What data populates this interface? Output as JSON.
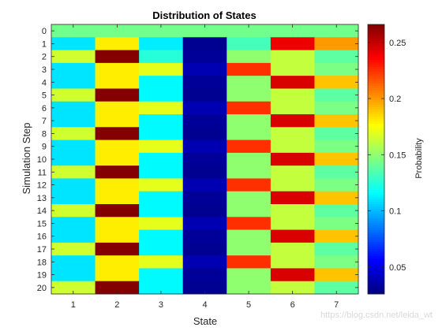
{
  "chart_data": {
    "type": "heatmap",
    "title": "Distribution of States",
    "xlabel": "State",
    "ylabel": "Simulation Step",
    "x": [
      1,
      2,
      3,
      4,
      5,
      6,
      7
    ],
    "y": [
      0,
      1,
      2,
      3,
      4,
      5,
      6,
      7,
      8,
      9,
      10,
      11,
      12,
      13,
      14,
      15,
      16,
      17,
      18,
      19,
      20
    ],
    "values": [
      [
        0.143,
        0.143,
        0.143,
        0.143,
        0.143,
        0.143,
        0.143
      ],
      [
        0.11,
        0.18,
        0.112,
        0.03,
        0.132,
        0.24,
        0.2
      ],
      [
        0.165,
        0.265,
        0.125,
        0.032,
        0.15,
        0.162,
        0.138
      ],
      [
        0.11,
        0.18,
        0.17,
        0.038,
        0.225,
        0.162,
        0.145
      ],
      [
        0.11,
        0.18,
        0.115,
        0.032,
        0.15,
        0.245,
        0.19
      ],
      [
        0.165,
        0.265,
        0.115,
        0.03,
        0.15,
        0.162,
        0.138
      ],
      [
        0.11,
        0.18,
        0.17,
        0.038,
        0.225,
        0.162,
        0.145
      ],
      [
        0.11,
        0.18,
        0.115,
        0.032,
        0.15,
        0.245,
        0.19
      ],
      [
        0.165,
        0.265,
        0.115,
        0.03,
        0.15,
        0.162,
        0.138
      ],
      [
        0.11,
        0.18,
        0.17,
        0.038,
        0.225,
        0.162,
        0.145
      ],
      [
        0.11,
        0.18,
        0.115,
        0.032,
        0.15,
        0.245,
        0.19
      ],
      [
        0.165,
        0.265,
        0.115,
        0.03,
        0.15,
        0.162,
        0.138
      ],
      [
        0.11,
        0.18,
        0.17,
        0.038,
        0.225,
        0.162,
        0.145
      ],
      [
        0.11,
        0.18,
        0.115,
        0.032,
        0.15,
        0.245,
        0.19
      ],
      [
        0.165,
        0.265,
        0.115,
        0.03,
        0.15,
        0.162,
        0.138
      ],
      [
        0.11,
        0.18,
        0.17,
        0.038,
        0.225,
        0.162,
        0.145
      ],
      [
        0.11,
        0.18,
        0.115,
        0.032,
        0.15,
        0.245,
        0.19
      ],
      [
        0.165,
        0.265,
        0.115,
        0.03,
        0.15,
        0.162,
        0.138
      ],
      [
        0.11,
        0.18,
        0.17,
        0.038,
        0.225,
        0.162,
        0.145
      ],
      [
        0.11,
        0.18,
        0.115,
        0.032,
        0.15,
        0.245,
        0.19
      ],
      [
        0.165,
        0.265,
        0.115,
        0.03,
        0.15,
        0.162,
        0.138
      ]
    ],
    "colorbar": {
      "label": "Probability",
      "range": [
        0.026,
        0.266
      ],
      "ticks": [
        0.05,
        0.1,
        0.15,
        0.2,
        0.25
      ],
      "tick_labels": [
        "0.05",
        "0.1",
        "0.15",
        "0.2",
        "0.25"
      ],
      "colormap": "jet"
    },
    "y_direction": "reverse",
    "grid": false
  },
  "watermark": "https://blog.csdn.net/leida_wt"
}
